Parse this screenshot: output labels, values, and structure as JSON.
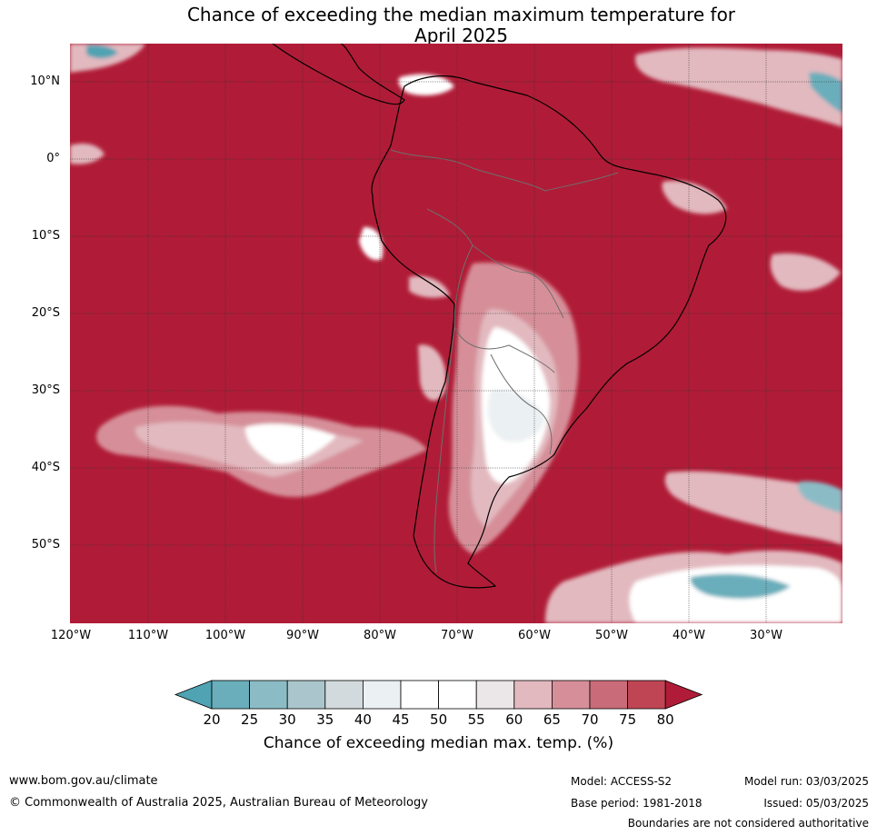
{
  "title_line1": "Chance of exceeding the median maximum temperature for",
  "title_line2": "April 2025",
  "colors": {
    "ocean_high": "#b01c37",
    "land_outline": "#000000",
    "border": "#6e6e6e",
    "grid": "#2a2a2a"
  },
  "lat_labels": [
    "10°N",
    "0°",
    "10°S",
    "20°S",
    "30°S",
    "40°S",
    "50°S"
  ],
  "lon_labels": [
    "120°W",
    "110°W",
    "100°W",
    "90°W",
    "80°W",
    "70°W",
    "60°W",
    "50°W",
    "40°W",
    "30°W"
  ],
  "colorbar": {
    "ticks": [
      "20",
      "25",
      "30",
      "35",
      "40",
      "45",
      "50",
      "55",
      "60",
      "65",
      "70",
      "75",
      "80"
    ],
    "colors": [
      "#4fa3b3",
      "#6aaebb",
      "#8bbcc6",
      "#aac6cc",
      "#d2dadd",
      "#ebf0f2",
      "#ffffff",
      "#ffffff",
      "#ebe7e8",
      "#e2b9bf",
      "#d68f99",
      "#c96b78",
      "#bf4555",
      "#b01c37"
    ],
    "label": "Chance of exceeding median max. temp. (%)"
  },
  "footer": {
    "website": "www.bom.gov.au/climate",
    "copyright": "© Commonwealth of Australia 2025, Australian Bureau of Meteorology",
    "model": "Model: ACCESS-S2",
    "base_period": "Base period: 1981-2018",
    "model_run": "Model run: 03/03/2025",
    "issued": "Issued: 05/03/2025",
    "disclaimer": "Boundaries are not considered authoritative"
  }
}
